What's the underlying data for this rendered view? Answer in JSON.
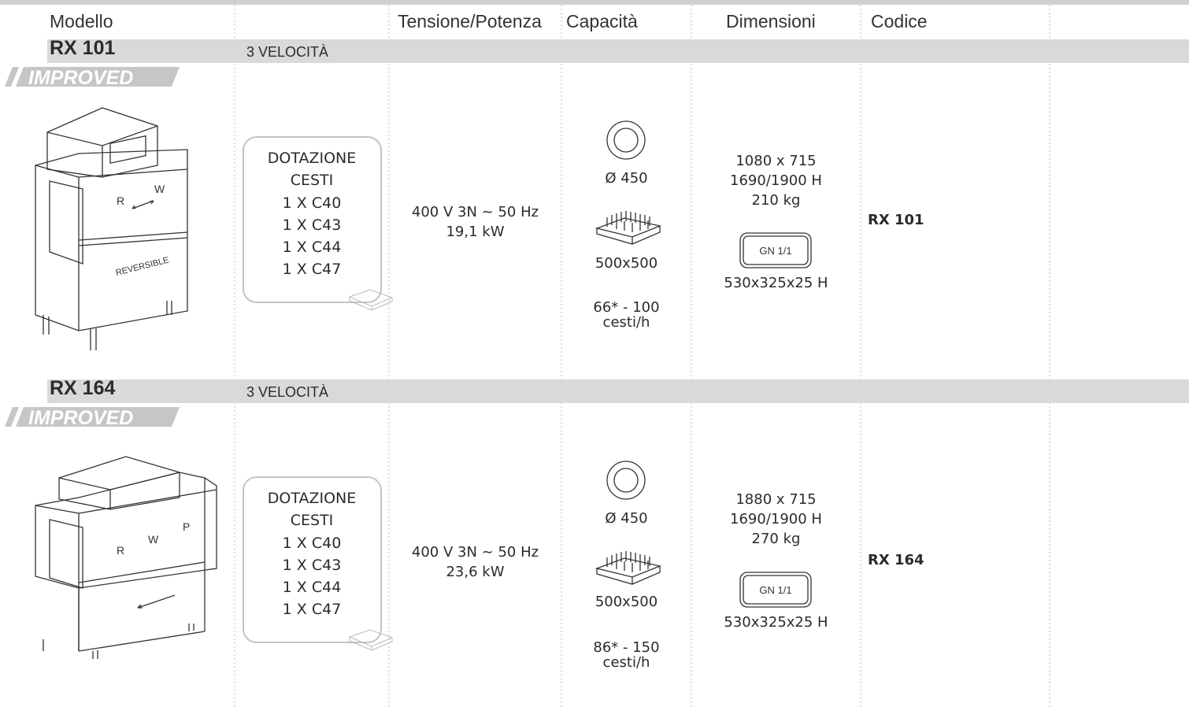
{
  "header": {
    "columns": [
      "Modello",
      "Tensione/Potenza",
      "Capacità",
      "Dimensioni",
      "Codice"
    ]
  },
  "products": [
    {
      "model": "RX 101",
      "speed": "3 VELOCITÀ",
      "badge": "IMPROVED",
      "machine_labels": [
        "R",
        "W",
        "REVERSIBLE"
      ],
      "equipment": [
        "DOTAZIONE",
        "CESTI",
        "1 X C40",
        "1 X C43",
        "1 X C44",
        "1 X C47"
      ],
      "power": [
        "400 V 3N ~ 50 Hz",
        "19,1 kW"
      ],
      "plate": "Ø 450",
      "basket": "500x500",
      "rate": [
        "66* - 100",
        "cesti/h"
      ],
      "dimensions": [
        "1080 x 715",
        "1690/1900 H",
        "210 kg"
      ],
      "gn": "GN 1/1",
      "gn_size": "530x325x25 H",
      "code": "RX 101"
    },
    {
      "model": "RX 164",
      "speed": "3 VELOCITÀ",
      "badge": "IMPROVED",
      "machine_labels": [
        "R",
        "W",
        "P"
      ],
      "equipment": [
        "DOTAZIONE",
        "CESTI",
        "1 X C40",
        "1 X C43",
        "1 X C44",
        "1 X C47"
      ],
      "power": [
        "400 V 3N ~ 50 Hz",
        "23,6 kW"
      ],
      "plate": "Ø 450",
      "basket": "500x500",
      "rate": [
        "86* - 150",
        "cesti/h"
      ],
      "dimensions": [
        "1880 x 715",
        "1690/1900 H",
        "270 kg"
      ],
      "gn": "GN 1/1",
      "gn_size": "530x325x25 H",
      "code": "RX 164"
    }
  ]
}
